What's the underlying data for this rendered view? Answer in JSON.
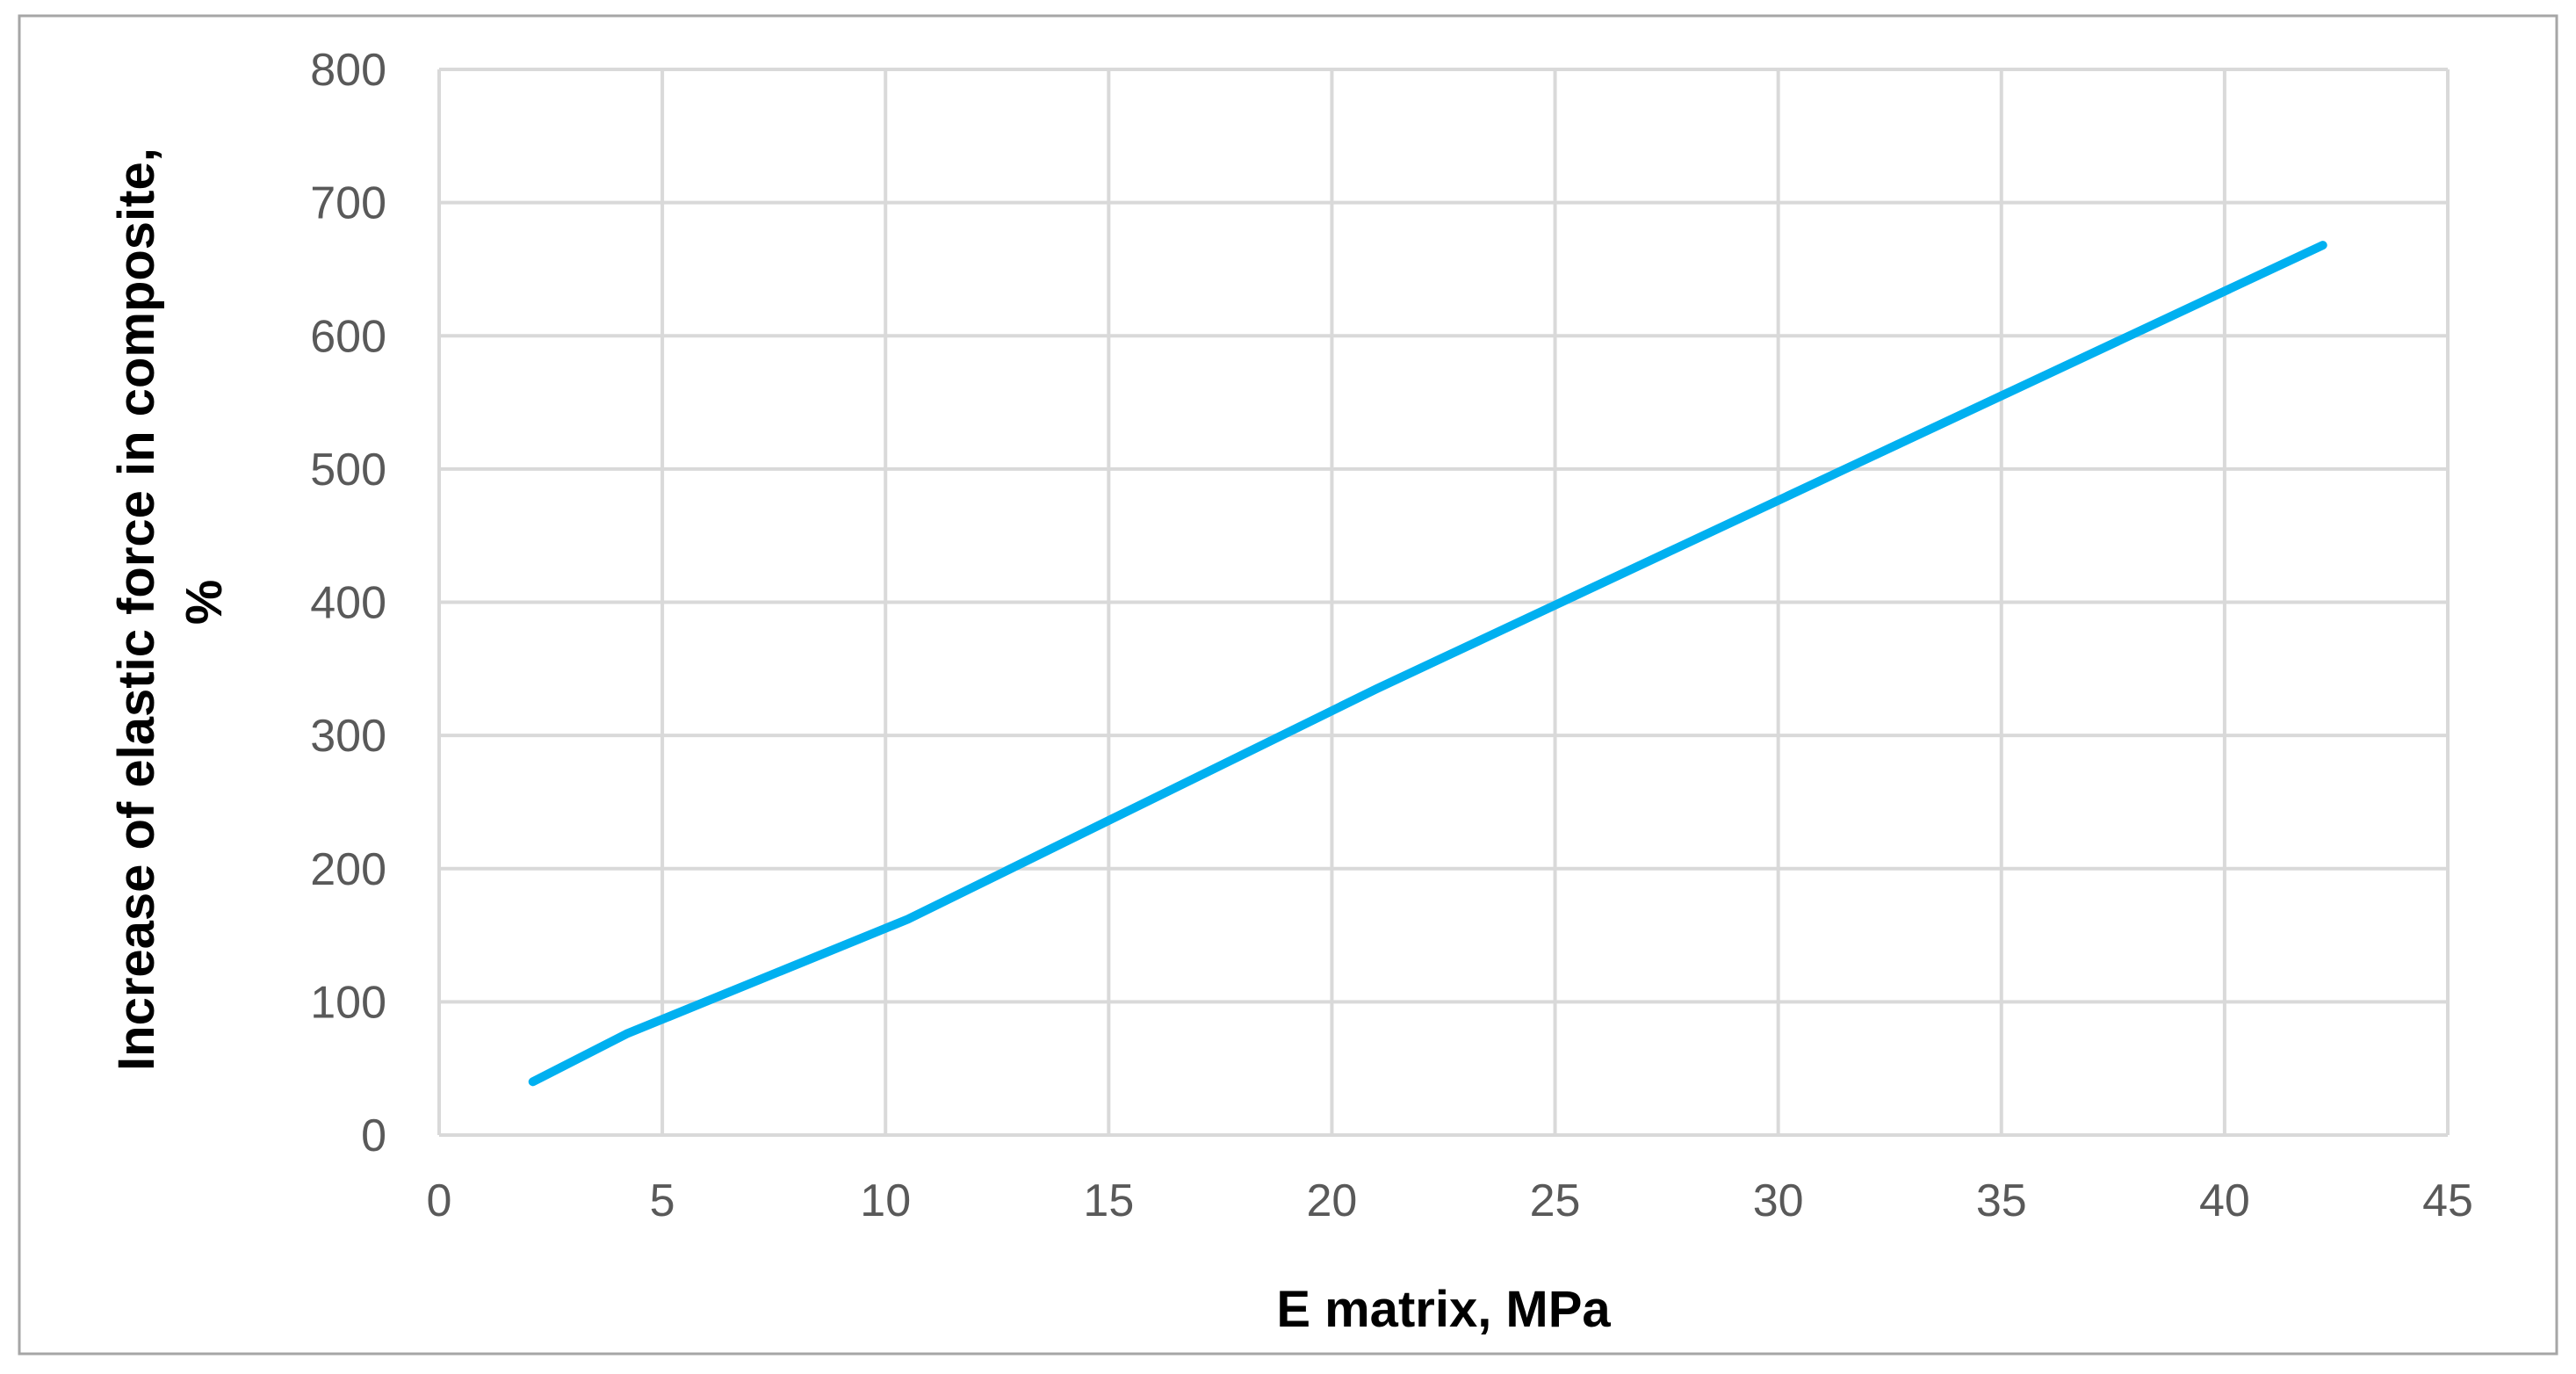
{
  "chart_data": {
    "type": "line",
    "xlabel": "E matrix, MPa",
    "ylabel_lines": [
      "Increase of elastic force in composite,",
      "%"
    ],
    "xlim": [
      0,
      45
    ],
    "ylim": [
      0,
      800
    ],
    "x_ticks": [
      "0",
      "5",
      "10",
      "15",
      "20",
      "25",
      "30",
      "35",
      "40",
      "45"
    ],
    "y_ticks": [
      "0",
      "100",
      "200",
      "300",
      "400",
      "500",
      "600",
      "700",
      "800"
    ],
    "grid": true,
    "legend": "none",
    "series": [
      {
        "color": "#00b0f0",
        "points": [
          {
            "x": 2.1,
            "y": 40
          },
          {
            "x": 4.2,
            "y": 76
          },
          {
            "x": 10.5,
            "y": 162
          },
          {
            "x": 21,
            "y": 335
          },
          {
            "x": 31.5,
            "y": 500
          },
          {
            "x": 42.2,
            "y": 668
          }
        ]
      }
    ]
  }
}
